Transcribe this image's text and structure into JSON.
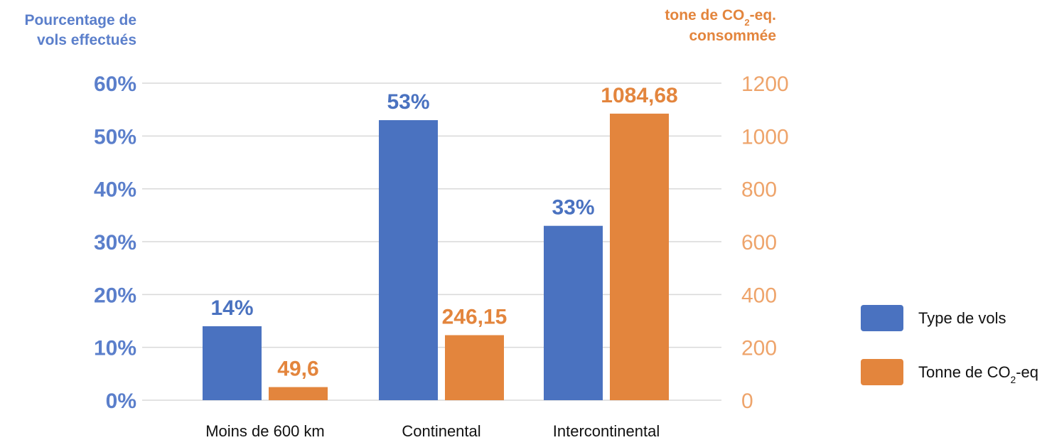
{
  "chart_data": {
    "type": "bar",
    "categories": [
      "Moins de 600 km",
      "Continental",
      "Intercontinental"
    ],
    "series": [
      {
        "name": "Type de vols",
        "axis": "left",
        "values": [
          14,
          53,
          33
        ],
        "value_labels": [
          "14%",
          "53%",
          "33%"
        ],
        "color": "#4a72c0"
      },
      {
        "name": "Tonne de CO2-eq",
        "axis": "right",
        "values": [
          49.6,
          246.15,
          1084.68
        ],
        "value_labels": [
          "49,6",
          "246,15",
          "1084,68"
        ],
        "color": "#e3853d"
      }
    ],
    "y_left": {
      "title_lines": [
        "Pourcentage de",
        "vols effectués"
      ],
      "range": [
        0,
        60
      ],
      "ticks": [
        "0%",
        "10%",
        "20%",
        "30%",
        "40%",
        "50%",
        "60%"
      ],
      "color": "#5b7fcb"
    },
    "y_right": {
      "title_lines": [
        "tone de CO2-eq.",
        "consommée"
      ],
      "range": [
        0,
        1200
      ],
      "ticks": [
        "0",
        "200",
        "400",
        "600",
        "800",
        "1000",
        "1200"
      ],
      "color": "#eea46b"
    },
    "grid": true,
    "legend_position": "right"
  },
  "colors": {
    "blue": "#4a72c0",
    "orange": "#e3853d",
    "blue_text": "#5b7fcb",
    "orange_title": "#e3853d",
    "orange_tick": "#eea46b",
    "grid": "#d9d9d9"
  }
}
